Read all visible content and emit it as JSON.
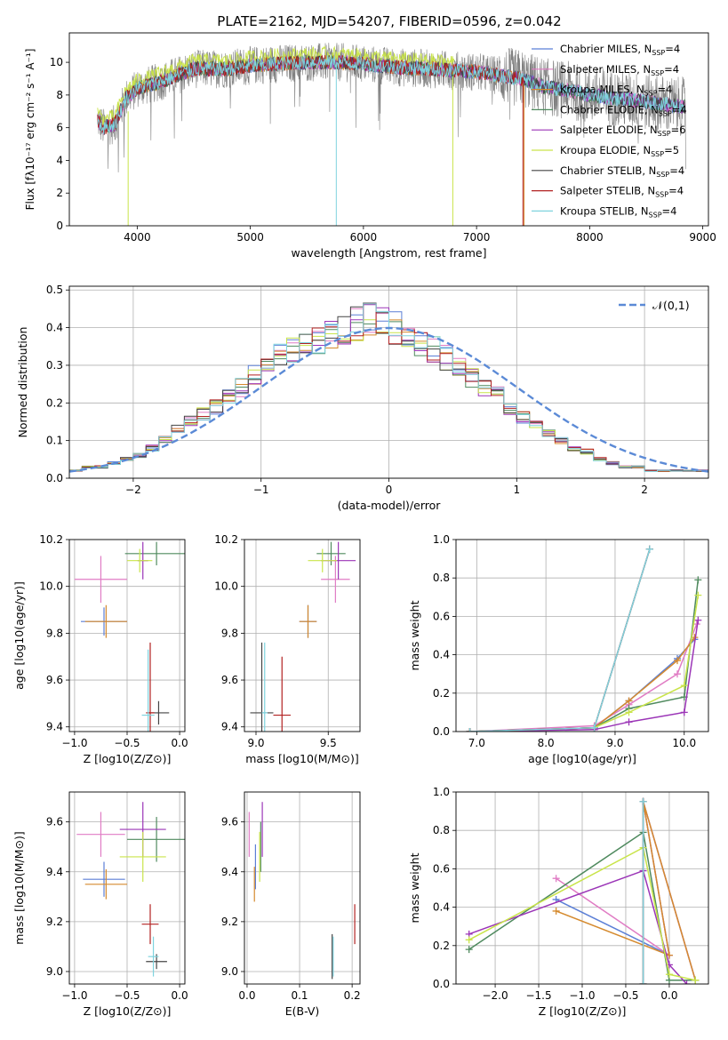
{
  "figure": {
    "title": "PLATE=2162, MJD=54207, FIBERID=0596, z=0.042"
  },
  "colors": [
    "#5b7fd6",
    "#e07cc4",
    "#d58a2e",
    "#4f8a5e",
    "#9b35b7",
    "#c9e44a",
    "#444444",
    "#b22222",
    "#7fd3de"
  ],
  "legend_ssp": [
    {
      "name": "Chabrier MILES, N",
      "sub": "SSP",
      "tail": "=4"
    },
    {
      "name": "Salpeter MILES, N",
      "sub": "SSP",
      "tail": "=4"
    },
    {
      "name": "Kroupa MILES, N",
      "sub": "SSP",
      "tail": "=4"
    },
    {
      "name": "Chabrier ELODIE, N",
      "sub": "SSP",
      "tail": "=4"
    },
    {
      "name": "Salpeter ELODIE, N",
      "sub": "SSP",
      "tail": "=6"
    },
    {
      "name": "Kroupa ELODIE, N",
      "sub": "SSP",
      "tail": "=5"
    },
    {
      "name": "Chabrier STELIB, N",
      "sub": "SSP",
      "tail": "=4"
    },
    {
      "name": "Salpeter STELIB, N",
      "sub": "SSP",
      "tail": "=4"
    },
    {
      "name": "Kroupa STELIB, N",
      "sub": "SSP",
      "tail": "=4"
    }
  ],
  "chart_data": [
    {
      "id": "spectrum",
      "type": "line",
      "xlabel": "wavelength [Angstrom, rest frame]",
      "ylabel": "Flux [f_λ 10^-17 erg cm^-2 s^-1 A^-1]",
      "xlim": [
        3400,
        9050
      ],
      "ylim": [
        0,
        11.8
      ],
      "xticks": [
        4000,
        5000,
        6000,
        7000,
        8000,
        9000
      ],
      "yticks": [
        0,
        2,
        4,
        6,
        8,
        10
      ],
      "series_note": "data spectrum (grey) plus model fits per SSP library",
      "continuum": [
        [
          3650,
          6.5
        ],
        [
          3700,
          6.0
        ],
        [
          3800,
          6.2
        ],
        [
          3900,
          7.8
        ],
        [
          4000,
          8.4
        ],
        [
          4200,
          8.8
        ],
        [
          4500,
          9.6
        ],
        [
          4800,
          9.6
        ],
        [
          5000,
          9.8
        ],
        [
          5200,
          9.9
        ],
        [
          5500,
          10.0
        ],
        [
          5800,
          10.0
        ],
        [
          6000,
          9.9
        ],
        [
          6300,
          9.7
        ],
        [
          6600,
          9.6
        ],
        [
          7000,
          9.4
        ],
        [
          7400,
          9.0
        ],
        [
          7600,
          8.5
        ],
        [
          7800,
          8.3
        ],
        [
          8000,
          8.0
        ],
        [
          8200,
          7.8
        ],
        [
          8500,
          7.6
        ],
        [
          8800,
          7.3
        ]
      ]
    },
    {
      "id": "residuals",
      "type": "step",
      "xlabel": "(data-model)/error",
      "ylabel": "Normed distribution",
      "xlim": [
        -2.5,
        2.5
      ],
      "ylim": [
        0,
        0.51
      ],
      "xticks": [
        -2,
        -1,
        0,
        1,
        2
      ],
      "yticks": [
        0,
        0.1,
        0.2,
        0.3,
        0.4,
        0.5
      ],
      "reference": {
        "name": "𝒩(0,1)",
        "mu": 0,
        "sigma": 1
      },
      "bin_width": 0.1,
      "base": [
        0.02,
        0.03,
        0.03,
        0.04,
        0.05,
        0.06,
        0.08,
        0.1,
        0.13,
        0.15,
        0.17,
        0.19,
        0.22,
        0.24,
        0.27,
        0.3,
        0.33,
        0.34,
        0.36,
        0.37,
        0.38,
        0.4,
        0.41,
        0.42,
        0.41,
        0.4,
        0.38,
        0.36,
        0.34,
        0.32,
        0.3,
        0.27,
        0.24,
        0.22,
        0.19,
        0.16,
        0.14,
        0.12,
        0.1,
        0.08,
        0.07,
        0.05,
        0.04,
        0.03,
        0.03,
        0.02,
        0.02,
        0.02,
        0.02,
        0.02
      ]
    },
    {
      "id": "age_vs_Z",
      "type": "errorbar",
      "xlabel": "Z [log10(Z/Z⊙)]",
      "ylabel": "age  [log10(age/yr)]",
      "xlim": [
        -1.05,
        0.05
      ],
      "ylim": [
        9.38,
        10.2
      ],
      "xticks": [
        -1.0,
        -0.5,
        0.0
      ],
      "yticks": [
        9.4,
        9.6,
        9.8,
        10.0,
        10.2
      ],
      "points": [
        {
          "x": -0.72,
          "y": 9.85,
          "xerr": 0.22,
          "yerr": 0.06,
          "c": 0
        },
        {
          "x": -0.75,
          "y": 10.03,
          "xerr": 0.25,
          "yerr": 0.1,
          "c": 1
        },
        {
          "x": -0.7,
          "y": 9.85,
          "xerr": 0.2,
          "yerr": 0.07,
          "c": 2
        },
        {
          "x": -0.22,
          "y": 10.14,
          "xerr": 0.3,
          "yerr": 0.05,
          "c": 3
        },
        {
          "x": -0.35,
          "y": 10.11,
          "xerr": 0.05,
          "yerr": 0.08,
          "c": 4
        },
        {
          "x": -0.38,
          "y": 10.11,
          "xerr": 0.12,
          "yerr": 0.05,
          "c": 5
        },
        {
          "x": -0.2,
          "y": 9.46,
          "xerr": 0.1,
          "yerr": 0.05,
          "c": 6
        },
        {
          "x": -0.28,
          "y": 9.46,
          "xerr": 0.04,
          "yerr": 0.3,
          "c": 7
        },
        {
          "x": -0.3,
          "y": 9.45,
          "xerr": 0.06,
          "yerr": 0.28,
          "c": 8
        }
      ]
    },
    {
      "id": "age_vs_mass",
      "type": "errorbar",
      "xlabel": "mass [log10(M/M⊙)]",
      "ylabel": "",
      "xlim": [
        8.92,
        9.72
      ],
      "ylim": [
        9.38,
        10.2
      ],
      "xticks": [
        9.0,
        9.5
      ],
      "yticks": [
        9.4,
        9.6,
        9.8,
        10.0,
        10.2
      ],
      "points": [
        {
          "x": 9.36,
          "y": 9.85,
          "xerr": 0.06,
          "yerr": 0.07,
          "c": 0
        },
        {
          "x": 9.55,
          "y": 10.03,
          "xerr": 0.1,
          "yerr": 0.1,
          "c": 1
        },
        {
          "x": 9.36,
          "y": 9.85,
          "xerr": 0.06,
          "yerr": 0.07,
          "c": 2
        },
        {
          "x": 9.52,
          "y": 10.14,
          "xerr": 0.1,
          "yerr": 0.05,
          "c": 3
        },
        {
          "x": 9.57,
          "y": 10.11,
          "xerr": 0.12,
          "yerr": 0.08,
          "c": 4
        },
        {
          "x": 9.46,
          "y": 10.11,
          "xerr": 0.1,
          "yerr": 0.05,
          "c": 5
        },
        {
          "x": 9.04,
          "y": 9.46,
          "xerr": 0.08,
          "yerr": 0.3,
          "c": 6
        },
        {
          "x": 9.18,
          "y": 9.45,
          "xerr": 0.06,
          "yerr": 0.25,
          "c": 7
        },
        {
          "x": 9.06,
          "y": 9.46,
          "xerr": 0.02,
          "yerr": 0.3,
          "c": 8
        }
      ]
    },
    {
      "id": "weight_vs_age",
      "type": "line",
      "xlabel": "age  [log10(age/yr)]",
      "ylabel": "mass weight",
      "xlim": [
        6.7,
        10.35
      ],
      "ylim": [
        0,
        1.0
      ],
      "xticks": [
        7,
        8,
        9,
        10
      ],
      "yticks": [
        0.0,
        0.2,
        0.4,
        0.6,
        0.8,
        1.0
      ],
      "series": [
        {
          "c": 0,
          "x": [
            6.9,
            8.7,
            9.2,
            9.9,
            10.15
          ],
          "y": [
            0.0,
            0.02,
            0.16,
            0.38,
            0.48
          ]
        },
        {
          "c": 1,
          "x": [
            6.9,
            8.7,
            9.2,
            9.9,
            10.18
          ],
          "y": [
            0.0,
            0.03,
            0.14,
            0.3,
            0.56
          ]
        },
        {
          "c": 2,
          "x": [
            6.9,
            8.7,
            9.2,
            9.9,
            10.15
          ],
          "y": [
            0.0,
            0.02,
            0.16,
            0.37,
            0.49
          ]
        },
        {
          "c": 3,
          "x": [
            6.9,
            8.7,
            9.2,
            10.0,
            10.2
          ],
          "y": [
            0.0,
            0.02,
            0.12,
            0.18,
            0.79
          ]
        },
        {
          "c": 4,
          "x": [
            6.9,
            8.7,
            9.2,
            10.0,
            10.2
          ],
          "y": [
            0.0,
            0.01,
            0.05,
            0.1,
            0.58
          ]
        },
        {
          "c": 5,
          "x": [
            6.9,
            8.7,
            9.2,
            10.0,
            10.2
          ],
          "y": [
            0.0,
            0.02,
            0.1,
            0.24,
            0.71
          ]
        },
        {
          "c": 6,
          "x": [
            6.9,
            8.7,
            9.5
          ],
          "y": [
            0.0,
            0.02,
            0.95
          ]
        },
        {
          "c": 7,
          "x": [
            6.9,
            8.7,
            9.5
          ],
          "y": [
            0.0,
            0.02,
            0.95
          ]
        },
        {
          "c": 8,
          "x": [
            6.9,
            8.7,
            9.5
          ],
          "y": [
            0.0,
            0.02,
            0.95
          ]
        }
      ]
    },
    {
      "id": "mass_vs_Z",
      "type": "errorbar",
      "xlabel": "Z [log10(Z/Z⊙)]",
      "ylabel": "mass [log10(M/M⊙)]",
      "xlim": [
        -1.05,
        0.05
      ],
      "ylim": [
        8.95,
        9.72
      ],
      "xticks": [
        -1.0,
        -0.5,
        0.0
      ],
      "yticks": [
        9.0,
        9.2,
        9.4,
        9.6
      ],
      "points": [
        {
          "x": -0.72,
          "y": 9.37,
          "xerr": 0.2,
          "yerr": 0.07,
          "c": 0
        },
        {
          "x": -0.75,
          "y": 9.55,
          "xerr": 0.23,
          "yerr": 0.09,
          "c": 1
        },
        {
          "x": -0.7,
          "y": 9.35,
          "xerr": 0.2,
          "yerr": 0.06,
          "c": 2
        },
        {
          "x": -0.22,
          "y": 9.53,
          "xerr": 0.28,
          "yerr": 0.09,
          "c": 3
        },
        {
          "x": -0.35,
          "y": 9.57,
          "xerr": 0.22,
          "yerr": 0.11,
          "c": 4
        },
        {
          "x": -0.35,
          "y": 9.46,
          "xerr": 0.22,
          "yerr": 0.1,
          "c": 5
        },
        {
          "x": -0.22,
          "y": 9.04,
          "xerr": 0.1,
          "yerr": 0.03,
          "c": 6
        },
        {
          "x": -0.28,
          "y": 9.19,
          "xerr": 0.08,
          "yerr": 0.08,
          "c": 7
        },
        {
          "x": -0.25,
          "y": 9.06,
          "xerr": 0.05,
          "yerr": 0.08,
          "c": 8
        }
      ]
    },
    {
      "id": "mass_vs_ebv",
      "type": "errorbar",
      "xlabel": "E(B-V)",
      "ylabel": "",
      "xlim": [
        -0.005,
        0.215
      ],
      "ylim": [
        8.95,
        9.72
      ],
      "xticks": [
        0.0,
        0.1,
        0.2
      ],
      "yticks": [
        9.0,
        9.2,
        9.4,
        9.6
      ],
      "points": [
        {
          "x": 0.016,
          "y": 9.42,
          "xerr": 0,
          "yerr": 0.09,
          "c": 0
        },
        {
          "x": 0.004,
          "y": 9.55,
          "xerr": 0,
          "yerr": 0.09,
          "c": 1
        },
        {
          "x": 0.014,
          "y": 9.35,
          "xerr": 0,
          "yerr": 0.07,
          "c": 2
        },
        {
          "x": 0.026,
          "y": 9.5,
          "xerr": 0,
          "yerr": 0.1,
          "c": 3
        },
        {
          "x": 0.029,
          "y": 9.57,
          "xerr": 0,
          "yerr": 0.11,
          "c": 4
        },
        {
          "x": 0.024,
          "y": 9.46,
          "xerr": 0,
          "yerr": 0.1,
          "c": 5
        },
        {
          "x": 0.162,
          "y": 9.06,
          "xerr": 0,
          "yerr": 0.09,
          "c": 6
        },
        {
          "x": 0.205,
          "y": 9.19,
          "xerr": 0,
          "yerr": 0.08,
          "c": 7
        },
        {
          "x": 0.164,
          "y": 9.06,
          "xerr": 0,
          "yerr": 0.08,
          "c": 8
        }
      ]
    },
    {
      "id": "weight_vs_Z",
      "type": "line",
      "xlabel": "Z [log10(Z/Z⊙)]",
      "ylabel": "mass weight",
      "xlim": [
        -2.45,
        0.45
      ],
      "ylim": [
        0,
        1.0
      ],
      "xticks": [
        -2.0,
        -1.5,
        -1.0,
        -0.5,
        0.0
      ],
      "yticks": [
        0.0,
        0.2,
        0.4,
        0.6,
        0.8,
        1.0
      ],
      "series": [
        {
          "c": 0,
          "x": [
            -1.3,
            0.0,
            -0.3,
            0.3
          ],
          "y": [
            0.44,
            0.15,
            0.95,
            0.02
          ]
        },
        {
          "c": 1,
          "x": [
            -1.3,
            0.0,
            -0.3,
            0.3
          ],
          "y": [
            0.55,
            0.15,
            0.95,
            0.02
          ]
        },
        {
          "c": 2,
          "x": [
            -1.3,
            0.0,
            -0.3,
            0.3
          ],
          "y": [
            0.38,
            0.15,
            0.95,
            0.02
          ]
        },
        {
          "c": 3,
          "x": [
            -2.3,
            -0.3,
            0.0,
            0.3
          ],
          "y": [
            0.18,
            0.79,
            0.02,
            0.02
          ]
        },
        {
          "c": 4,
          "x": [
            -2.3,
            -0.3,
            0.0,
            0.2
          ],
          "y": [
            0.26,
            0.59,
            0.1,
            0.0
          ]
        },
        {
          "c": 5,
          "x": [
            -2.3,
            -0.3,
            0.0,
            0.3
          ],
          "y": [
            0.23,
            0.71,
            0.05,
            0.02
          ]
        },
        {
          "c": 6,
          "x": [
            -0.3,
            -0.3
          ],
          "y": [
            0.0,
            0.95
          ]
        },
        {
          "c": 7,
          "x": [
            -0.3,
            -0.3
          ],
          "y": [
            0.0,
            0.95
          ]
        },
        {
          "c": 8,
          "x": [
            -0.3,
            -0.3
          ],
          "y": [
            0.0,
            0.95
          ]
        }
      ]
    }
  ]
}
